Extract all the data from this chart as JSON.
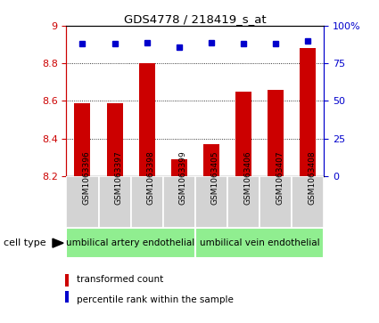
{
  "title": "GDS4778 / 218419_s_at",
  "samples": [
    "GSM1063396",
    "GSM1063397",
    "GSM1063398",
    "GSM1063399",
    "GSM1063405",
    "GSM1063406",
    "GSM1063407",
    "GSM1063408"
  ],
  "bar_values": [
    8.59,
    8.59,
    8.8,
    8.29,
    8.37,
    8.65,
    8.66,
    8.88
  ],
  "dot_values": [
    88,
    88,
    89,
    86,
    89,
    88,
    88,
    90
  ],
  "ylim_left": [
    8.2,
    9.0
  ],
  "yticks_left": [
    8.2,
    8.4,
    8.6,
    8.8,
    9.0
  ],
  "ytick_labels_left": [
    "8.2",
    "8.4",
    "8.6",
    "8.8",
    "9"
  ],
  "yticks_right": [
    0,
    25,
    50,
    75,
    100
  ],
  "ytick_labels_right": [
    "0",
    "25",
    "50",
    "75",
    "100%"
  ],
  "bar_color": "#cc0000",
  "dot_color": "#0000cc",
  "bar_bottom": 8.2,
  "group1_label": "umbilical artery endothelial",
  "group2_label": "umbilical vein endothelial",
  "group_color": "#90ee90",
  "cell_type_label": "cell type",
  "legend_bar_label": "transformed count",
  "legend_dot_label": "percentile rank within the sample",
  "tick_color_left": "#cc0000",
  "tick_color_right": "#0000cc",
  "xticklabel_bg": "#d3d3d3",
  "grid_yticks": [
    8.4,
    8.6,
    8.8
  ]
}
